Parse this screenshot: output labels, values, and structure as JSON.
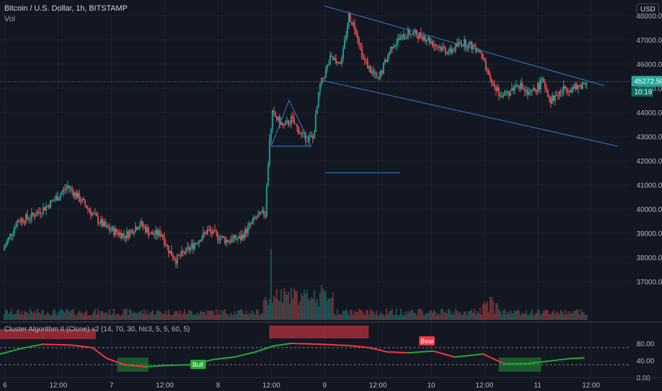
{
  "header": {
    "symbol": "Bitcoin / U.S. Dollar, 1h, BITSTAMP",
    "volume_label": "Vol",
    "currency_button": "USD"
  },
  "price_label": {
    "value": "45272.50",
    "countdown": "10:19"
  },
  "oscillator": {
    "title": "Cluster Algorithm II (Clone) v2 (14, 70, 30, hlc3, 5, 5, 60, 5)",
    "axis_ticks": [
      "80.00",
      "40.00",
      "0.00"
    ],
    "bull_label": "Bull",
    "bear_label": "Bear"
  },
  "colors": {
    "background": "#131722",
    "up": "#26a69a",
    "down": "#ef5350",
    "trendline": "#2962ff",
    "grid": "#1e222d",
    "axis_text": "#b2b5be",
    "price_tag": "#26a69a",
    "osc_green": "#22ab36",
    "osc_red": "#f23645"
  },
  "chart_data": {
    "type": "candlestick",
    "title": "Bitcoin / U.S. Dollar, 1h, BITSTAMP",
    "y_axis_ticks": [
      "48000.00",
      "47000.00",
      "46000.00",
      "45000.00",
      "44000.00",
      "43000.00",
      "42000.00",
      "41000.00",
      "40000.00",
      "39000.00",
      "38000.00",
      "37000.00"
    ],
    "ylim": [
      36500,
      49000
    ],
    "x_axis_ticks": [
      "6",
      "12:00",
      "7",
      "12:00",
      "8",
      "12:00",
      "9",
      "12:00",
      "10",
      "12:00",
      "11",
      "12:00"
    ],
    "current_price": 45272.5,
    "series": [
      {
        "name": "Price",
        "style": "candlestick"
      },
      {
        "name": "Vol",
        "style": "bar"
      }
    ],
    "trendlines": [
      {
        "from": [
          "9 00:00",
          48400
        ],
        "to": [
          "11 15:00",
          45100
        ]
      },
      {
        "from": [
          "9 00:00",
          45300
        ],
        "to": [
          "11 18:00",
          42600
        ]
      },
      {
        "from": [
          "9 00:00",
          41500
        ],
        "to": [
          "9 17:00",
          41500
        ]
      }
    ]
  }
}
